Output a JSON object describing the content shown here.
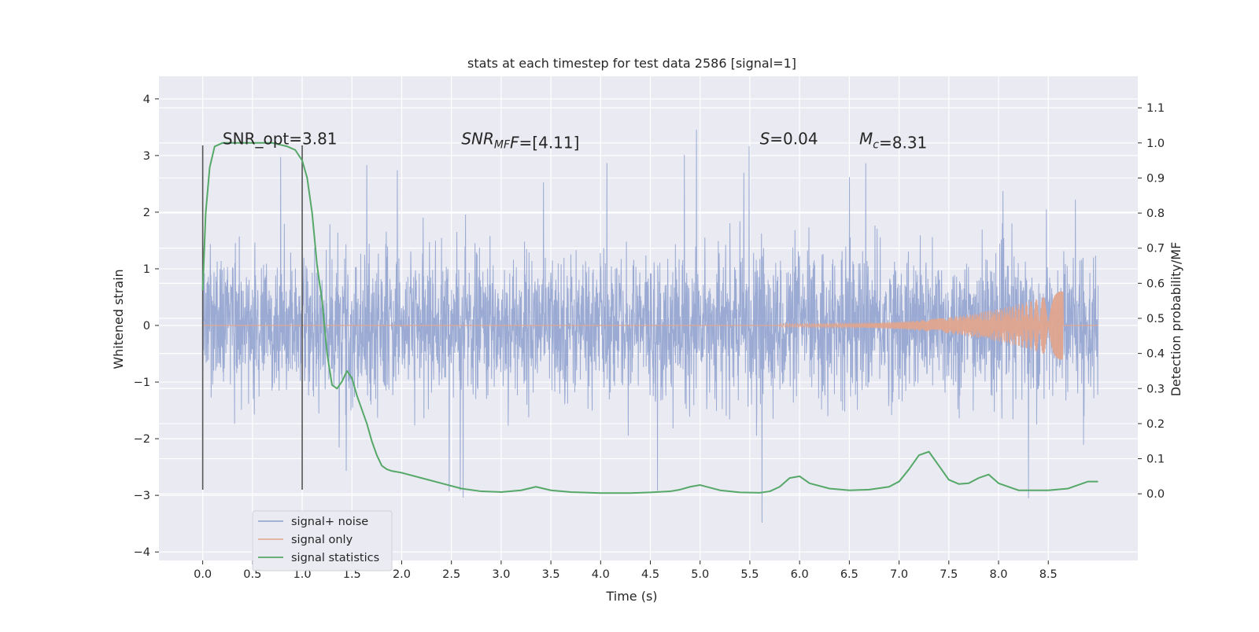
{
  "chart_data": {
    "type": "line",
    "title": "stats at each timestep for test data 2586 [signal=1]",
    "xlabel": "Time (s)",
    "ylabel_left": "Whitened strain",
    "ylabel_right": "Detection probability/MF",
    "xlim": [
      -0.44,
      9.4
    ],
    "ylim_left": [
      -4.15,
      4.4
    ],
    "ylim_right": [
      -0.19,
      1.19
    ],
    "x_ticks": [
      "0.0",
      "0.5",
      "1.0",
      "1.5",
      "2.0",
      "2.5",
      "3.0",
      "3.5",
      "4.0",
      "4.5",
      "5.0",
      "5.5",
      "6.0",
      "6.5",
      "7.0",
      "7.5",
      "8.0",
      "8.5"
    ],
    "y_ticks_left": [
      "−4",
      "−3",
      "−2",
      "−1",
      "0",
      "1",
      "2",
      "3",
      "4"
    ],
    "y_ticks_right": [
      "0.0",
      "0.1",
      "0.2",
      "0.3",
      "0.4",
      "0.5",
      "0.6",
      "0.7",
      "0.8",
      "0.9",
      "1.0",
      "1.1"
    ],
    "grid": true,
    "legend_position": "lower-left",
    "series": [
      {
        "name": "signal+ noise",
        "color": "#8c9fce",
        "axis": "left",
        "x_range": [
          0.0,
          9.0
        ],
        "typical_amplitude": 1.3,
        "max_positive": 4.0,
        "min_negative": -3.5
      },
      {
        "name": "signal only",
        "color": "#e0a58e",
        "axis": "left",
        "chirp_start": 5.8,
        "chirp_end": 8.65,
        "peak_amplitude": 0.6
      },
      {
        "name": "signal statistics",
        "color": "#55a868",
        "axis": "right",
        "x": [
          0.0,
          0.03,
          0.07,
          0.12,
          0.2,
          0.3,
          0.5,
          0.7,
          0.85,
          0.93,
          1.0,
          1.05,
          1.1,
          1.15,
          1.2,
          1.25,
          1.3,
          1.35,
          1.4,
          1.45,
          1.5,
          1.55,
          1.6,
          1.65,
          1.7,
          1.75,
          1.8,
          1.85,
          1.9,
          2.0,
          2.2,
          2.4,
          2.6,
          2.8,
          3.0,
          3.2,
          3.35,
          3.5,
          3.7,
          4.0,
          4.3,
          4.5,
          4.7,
          4.8,
          4.9,
          5.0,
          5.2,
          5.4,
          5.6,
          5.7,
          5.8,
          5.9,
          6.0,
          6.1,
          6.3,
          6.5,
          6.7,
          6.9,
          7.0,
          7.1,
          7.2,
          7.3,
          7.4,
          7.5,
          7.6,
          7.7,
          7.8,
          7.9,
          8.0,
          8.2,
          8.5,
          8.7,
          8.9,
          9.0
        ],
        "y": [
          0.58,
          0.8,
          0.93,
          0.99,
          1.0,
          1.0,
          1.0,
          1.0,
          0.99,
          0.98,
          0.95,
          0.9,
          0.8,
          0.65,
          0.55,
          0.4,
          0.31,
          0.3,
          0.32,
          0.35,
          0.33,
          0.28,
          0.24,
          0.2,
          0.15,
          0.11,
          0.08,
          0.07,
          0.065,
          0.06,
          0.045,
          0.03,
          0.015,
          0.007,
          0.005,
          0.01,
          0.02,
          0.01,
          0.005,
          0.002,
          0.002,
          0.004,
          0.007,
          0.012,
          0.02,
          0.025,
          0.01,
          0.004,
          0.003,
          0.007,
          0.02,
          0.045,
          0.05,
          0.03,
          0.015,
          0.01,
          0.012,
          0.02,
          0.035,
          0.07,
          0.11,
          0.12,
          0.08,
          0.04,
          0.028,
          0.03,
          0.045,
          0.055,
          0.03,
          0.01,
          0.01,
          0.015,
          0.035,
          0.035
        ]
      }
    ],
    "vertical_lines": [
      {
        "x": 0.0,
        "from": -2.9,
        "to": 3.18
      },
      {
        "x": 1.0,
        "from": -2.9,
        "to": 3.18
      }
    ],
    "annotations": [
      {
        "x": 0.2,
        "y": 3.2,
        "plain": "SNR_opt=3.81"
      },
      {
        "x": 2.6,
        "y": 3.2,
        "italic": "SNR",
        "sub": "MF",
        "italic2": "F",
        "rest": "=[4.11]"
      },
      {
        "x": 5.6,
        "y": 3.2,
        "italic": "S",
        "rest": "=0.04"
      },
      {
        "x": 6.6,
        "y": 3.2,
        "italic": "M",
        "sub": "c",
        "rest": "=8.31"
      }
    ],
    "colors": {
      "plot_bg": "#eaeaf2",
      "grid": "#ffffff",
      "text": "#262626"
    }
  }
}
